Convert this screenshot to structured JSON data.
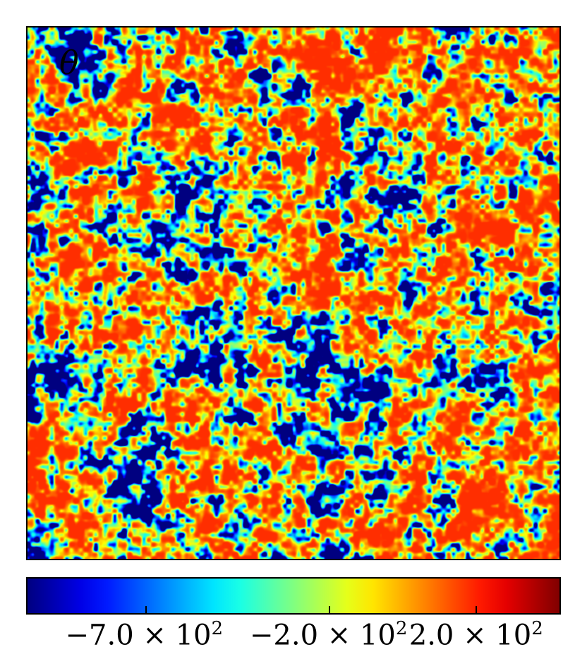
{
  "panel": {
    "symbol": "θ"
  },
  "chart_data": {
    "type": "heatmap",
    "title": "",
    "xlabel": "",
    "ylabel": "",
    "colormap": "jet",
    "colorbar": {
      "range": [
        -1020,
        430
      ],
      "ticks": [
        {
          "value": -700,
          "mantissa": "−7.0 × 10",
          "exponent": "2"
        },
        {
          "value": -200,
          "mantissa": "−2.0 × 10",
          "exponent": "2"
        },
        {
          "value": 200,
          "mantissa": "2.0 × 10",
          "exponent": "2"
        }
      ]
    },
    "field_description": "dense random turbulent field dominated by orange/red with yellow and cyan filaments and sparse blue minima"
  }
}
